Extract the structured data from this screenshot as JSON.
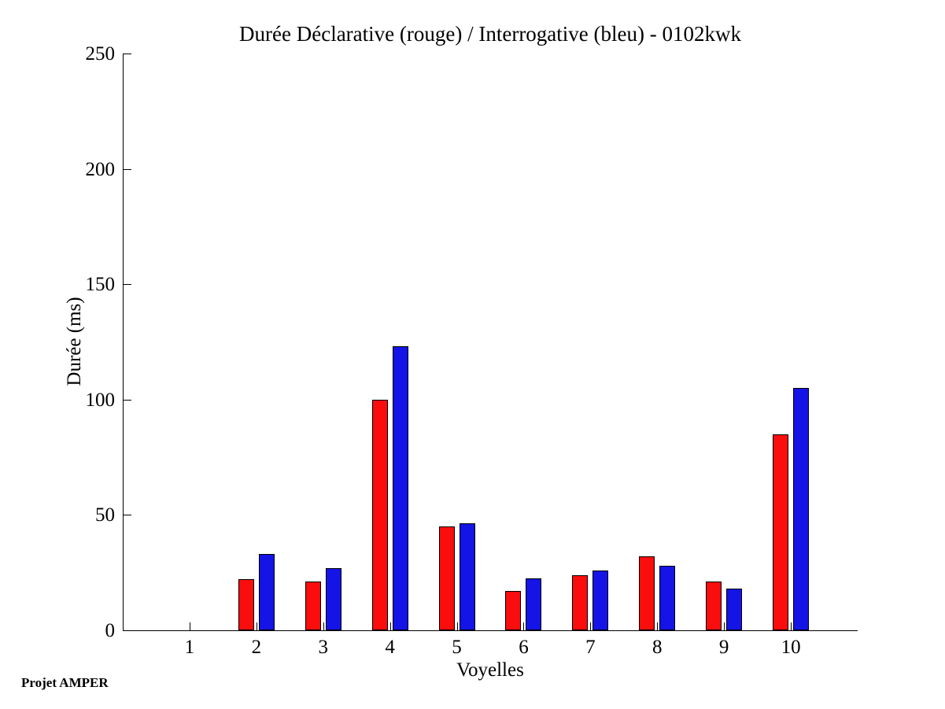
{
  "page": {
    "background_color": "#ffffff",
    "text_color": "#000000"
  },
  "footer": {
    "project_label": "Projet AMPER"
  },
  "chart_data": {
    "type": "bar",
    "title": "Durée Déclarative (rouge) / Interrogative (bleu) - 0102kwk",
    "xlabel": "Voyelles",
    "ylabel": "Durée (ms)",
    "categories": [
      "1",
      "2",
      "3",
      "4",
      "5",
      "6",
      "7",
      "8",
      "9",
      "10"
    ],
    "series": [
      {
        "name": "Déclarative",
        "color": "#fa0d0d",
        "values": [
          0,
          22,
          21,
          100,
          45,
          17,
          24,
          32,
          21,
          85
        ]
      },
      {
        "name": "Interrogative",
        "color": "#1414e6",
        "values": [
          0,
          33,
          27,
          123,
          46.5,
          22.5,
          26,
          28,
          18,
          105
        ]
      }
    ],
    "ylim": [
      0,
      250
    ],
    "yticks": [
      0,
      50,
      100,
      150,
      200,
      250
    ],
    "grid": false,
    "legend_position": "none",
    "axis_color": "#000000"
  }
}
